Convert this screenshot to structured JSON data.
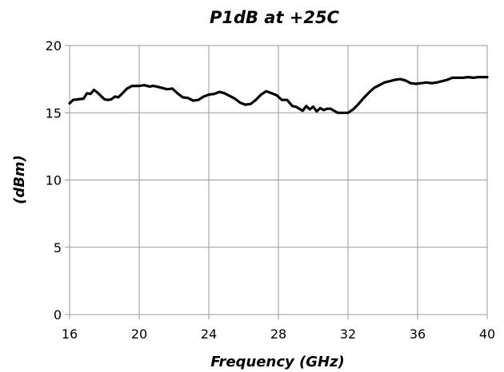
{
  "chart_data": {
    "type": "line",
    "title": "P1dB at +25C",
    "xlabel": "Frequency (GHz)",
    "ylabel": "(dBm)",
    "xlim": [
      16,
      40
    ],
    "ylim": [
      0,
      20
    ],
    "x_ticks": [
      16,
      20,
      24,
      28,
      32,
      36,
      40
    ],
    "y_ticks": [
      0,
      5,
      10,
      15,
      20
    ],
    "grid": true,
    "legend": "none",
    "line_color": "#000000",
    "grid_color": "#9a9a9a",
    "series": [
      {
        "x": [
          16.0,
          16.2,
          16.5,
          16.8,
          17.0,
          17.2,
          17.4,
          17.6,
          17.8,
          18.0,
          18.2,
          18.4,
          18.6,
          18.8,
          19.0,
          19.3,
          19.6,
          20.0,
          20.3,
          20.6,
          20.8,
          21.0,
          21.3,
          21.6,
          21.9,
          22.2,
          22.5,
          22.8,
          23.1,
          23.4,
          23.7,
          24.0,
          24.3,
          24.6,
          24.9,
          25.2,
          25.5,
          25.8,
          26.1,
          26.4,
          26.7,
          27.0,
          27.3,
          27.6,
          27.9,
          28.2,
          28.5,
          28.8,
          29.0,
          29.2,
          29.4,
          29.6,
          29.8,
          30.0,
          30.2,
          30.4,
          30.6,
          30.8,
          31.0,
          31.2,
          31.4,
          31.6,
          31.8,
          32.0,
          32.3,
          32.6,
          32.9,
          33.2,
          33.5,
          33.8,
          34.1,
          34.4,
          34.7,
          35.0,
          35.3,
          35.6,
          35.9,
          36.2,
          36.5,
          36.8,
          37.1,
          37.4,
          37.7,
          38.0,
          38.3,
          38.6,
          38.9,
          39.2,
          39.5,
          39.8,
          40.0
        ],
        "y": [
          15.7,
          15.95,
          16.0,
          16.05,
          16.45,
          16.4,
          16.7,
          16.5,
          16.25,
          16.0,
          15.95,
          16.0,
          16.2,
          16.15,
          16.4,
          16.8,
          17.0,
          17.0,
          17.05,
          16.95,
          17.0,
          16.95,
          16.85,
          16.75,
          16.8,
          16.45,
          16.15,
          16.1,
          15.9,
          15.95,
          16.2,
          16.35,
          16.4,
          16.55,
          16.45,
          16.25,
          16.05,
          15.75,
          15.6,
          15.65,
          15.95,
          16.35,
          16.6,
          16.45,
          16.3,
          15.95,
          15.95,
          15.5,
          15.45,
          15.3,
          15.15,
          15.5,
          15.25,
          15.45,
          15.1,
          15.35,
          15.2,
          15.3,
          15.3,
          15.15,
          15.0,
          15.0,
          15.0,
          15.0,
          15.25,
          15.65,
          16.1,
          16.5,
          16.85,
          17.05,
          17.25,
          17.35,
          17.45,
          17.5,
          17.4,
          17.2,
          17.15,
          17.2,
          17.25,
          17.2,
          17.25,
          17.35,
          17.45,
          17.6,
          17.6,
          17.6,
          17.65,
          17.6,
          17.65,
          17.65,
          17.65
        ]
      }
    ]
  }
}
